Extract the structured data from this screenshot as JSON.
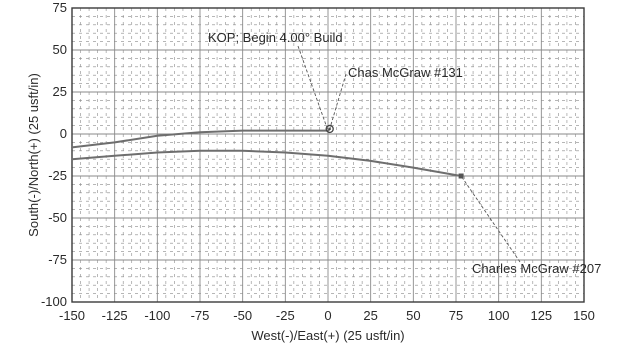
{
  "chart_data": {
    "type": "line",
    "title": "",
    "xlabel": "West(-)/East(+) (25 usft/in)",
    "ylabel": "South(-)/North(+) (25 usft/in)",
    "xlim": [
      -150,
      150
    ],
    "ylim": [
      -100,
      75
    ],
    "x_ticks": [
      -150,
      -125,
      -100,
      -75,
      -50,
      -25,
      0,
      25,
      50,
      75,
      100,
      125,
      150
    ],
    "y_ticks": [
      75,
      50,
      25,
      0,
      -25,
      -50,
      -75,
      -100
    ],
    "grid": true,
    "series": [
      {
        "values": [
          {
            "x": -150,
            "y": -8
          },
          {
            "x": -125,
            "y": -5
          },
          {
            "x": -100,
            "y": -1
          },
          {
            "x": -75,
            "y": 1
          },
          {
            "x": -50,
            "y": 2
          },
          {
            "x": -25,
            "y": 2
          },
          {
            "x": 0,
            "y": 2
          },
          {
            "x": 1,
            "y": 3
          }
        ]
      },
      {
        "values": [
          {
            "x": -150,
            "y": -15
          },
          {
            "x": -125,
            "y": -13
          },
          {
            "x": -100,
            "y": -11
          },
          {
            "x": -75,
            "y": -10
          },
          {
            "x": -50,
            "y": -10
          },
          {
            "x": -25,
            "y": -11
          },
          {
            "x": 0,
            "y": -13
          },
          {
            "x": 25,
            "y": -16
          },
          {
            "x": 50,
            "y": -20
          },
          {
            "x": 78,
            "y": -25
          }
        ]
      }
    ],
    "annotations": [
      {
        "text": "KOP; Begin 4.00° Build",
        "x": 0,
        "y": 2
      },
      {
        "text": "Chas McGraw #131",
        "x": 1,
        "y": 3
      },
      {
        "text": "Charles McGraw #207",
        "x": 78,
        "y": -25
      }
    ]
  },
  "colors": {
    "line": "#6e6e6e",
    "grid": "#8a8a8a",
    "text": "#2a2a2a"
  }
}
